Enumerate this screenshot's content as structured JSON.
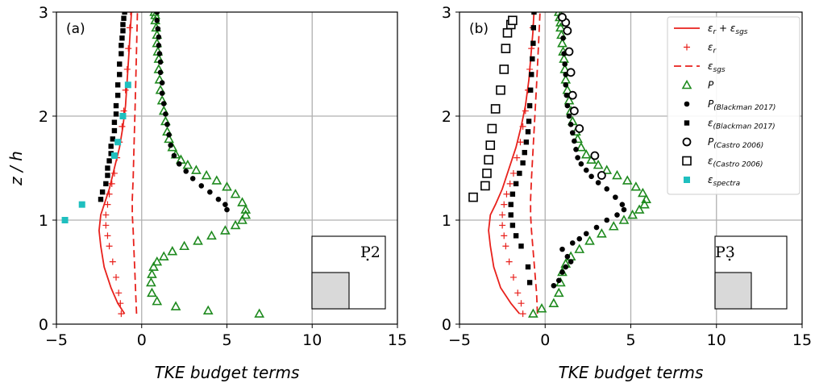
{
  "chart_data": [
    {
      "type": "line",
      "panel_label": "(a)",
      "inset_label": "P2",
      "xlabel": "TKE budget terms",
      "ylabel": "z / h",
      "xlim": [
        -5,
        15
      ],
      "ylim": [
        0,
        3
      ],
      "xticks": [
        "−5",
        "0",
        "5",
        "10",
        "15"
      ],
      "yticks": [
        "0",
        "1",
        "2",
        "3"
      ],
      "grid": true,
      "series": [
        {
          "key": "eps_total",
          "style": "solid-line",
          "color": "#e8211c",
          "x": [
            -1.0,
            -1.4,
            -1.8,
            -2.2,
            -2.4,
            -2.5,
            -2.4,
            -2.2,
            -1.9,
            -1.6,
            -1.3,
            -1.1,
            -0.95,
            -0.85,
            -0.75,
            -0.68,
            -0.6
          ],
          "y": [
            0.1,
            0.2,
            0.35,
            0.55,
            0.75,
            0.9,
            1.05,
            1.15,
            1.3,
            1.5,
            1.7,
            1.9,
            2.1,
            2.35,
            2.6,
            2.8,
            3.0
          ]
        },
        {
          "key": "eps_r",
          "style": "plus",
          "color": "#e8211c",
          "x": [
            -1.2,
            -1.25,
            -1.35,
            -1.5,
            -1.7,
            -1.9,
            -2.0,
            -2.1,
            -2.1,
            -2.0,
            -1.9,
            -1.75,
            -1.6,
            -1.45,
            -1.3,
            -1.15,
            -1.05,
            -0.95,
            -0.85,
            -0.78,
            -0.7,
            -0.65
          ],
          "y": [
            0.1,
            0.2,
            0.3,
            0.45,
            0.6,
            0.75,
            0.85,
            0.95,
            1.05,
            1.15,
            1.25,
            1.35,
            1.45,
            1.6,
            1.75,
            1.9,
            2.05,
            2.25,
            2.45,
            2.65,
            2.85,
            3.0
          ]
        },
        {
          "key": "eps_sgs",
          "style": "dashed-line",
          "color": "#e8211c",
          "x": [
            -0.3,
            -0.35,
            -0.4,
            -0.45,
            -0.5,
            -0.55,
            -0.55,
            -0.5,
            -0.45,
            -0.4,
            -0.35,
            -0.3,
            -0.25
          ],
          "y": [
            0.1,
            0.3,
            0.5,
            0.7,
            0.9,
            1.05,
            1.2,
            1.4,
            1.7,
            2.0,
            2.3,
            2.65,
            3.0
          ]
        },
        {
          "key": "P",
          "style": "triangle",
          "color": "#1e8a1e",
          "x": [
            6.9,
            3.9,
            2.0,
            0.9,
            0.6,
            0.55,
            0.6,
            0.7,
            0.9,
            1.3,
            1.8,
            2.5,
            3.3,
            4.1,
            4.9,
            5.5,
            5.9,
            6.1,
            6.1,
            5.9,
            5.5,
            5.0,
            4.4,
            3.8,
            3.2,
            2.7,
            2.3,
            2.0,
            1.8,
            1.6,
            1.5,
            1.4,
            1.3,
            1.2,
            1.1,
            1.05,
            1.0,
            1.0,
            0.95,
            0.9,
            0.9,
            0.85,
            0.8,
            0.8,
            0.75
          ],
          "y": [
            0.1,
            0.13,
            0.17,
            0.22,
            0.3,
            0.4,
            0.48,
            0.55,
            0.6,
            0.65,
            0.7,
            0.75,
            0.8,
            0.85,
            0.9,
            0.95,
            1.0,
            1.05,
            1.1,
            1.17,
            1.25,
            1.32,
            1.38,
            1.43,
            1.48,
            1.53,
            1.58,
            1.63,
            1.7,
            1.78,
            1.85,
            1.95,
            2.05,
            2.15,
            2.25,
            2.35,
            2.45,
            2.55,
            2.62,
            2.7,
            2.78,
            2.85,
            2.92,
            2.97,
            3.0
          ]
        },
        {
          "key": "P_blackman",
          "style": "dot",
          "color": "#000000",
          "x": [
            5.0,
            4.9,
            4.5,
            4.0,
            3.5,
            3.0,
            2.6,
            2.2,
            1.9,
            1.7,
            1.6,
            1.5,
            1.4,
            1.3,
            1.2,
            1.2,
            1.1,
            1.1,
            1.05,
            1.0,
            1.0,
            0.95,
            0.9,
            0.9
          ],
          "y": [
            1.1,
            1.15,
            1.2,
            1.27,
            1.33,
            1.4,
            1.47,
            1.54,
            1.62,
            1.72,
            1.82,
            1.92,
            2.02,
            2.12,
            2.22,
            2.32,
            2.42,
            2.52,
            2.6,
            2.68,
            2.76,
            2.84,
            2.92,
            3.0
          ]
        },
        {
          "key": "eps_blackman",
          "style": "square",
          "color": "#000000",
          "x": [
            -2.4,
            -2.3,
            -2.1,
            -2.0,
            -2.0,
            -1.9,
            -1.8,
            -1.8,
            -1.7,
            -1.6,
            -1.6,
            -1.5,
            -1.5,
            -1.4,
            -1.4,
            -1.3,
            -1.3,
            -1.2,
            -1.2,
            -1.15,
            -1.1,
            -1.1,
            -1.05,
            -1.0
          ],
          "y": [
            1.2,
            1.27,
            1.35,
            1.43,
            1.5,
            1.57,
            1.64,
            1.71,
            1.78,
            1.86,
            1.94,
            2.02,
            2.1,
            2.2,
            2.3,
            2.4,
            2.5,
            2.6,
            2.68,
            2.75,
            2.82,
            2.88,
            2.94,
            3.0
          ]
        },
        {
          "key": "eps_spectra",
          "style": "cyan-square",
          "color": "#1fbfbf",
          "x": [
            -4.5,
            -3.5,
            -1.6,
            -1.4,
            -1.1,
            -0.8
          ],
          "y": [
            1.0,
            1.15,
            1.62,
            1.75,
            2.0,
            2.3
          ]
        }
      ]
    },
    {
      "type": "line",
      "panel_label": "(b)",
      "inset_label": "P3",
      "xlabel": "TKE budget terms",
      "ylabel": "",
      "xlim": [
        -5,
        15
      ],
      "ylim": [
        0,
        3
      ],
      "xticks": [
        "−5",
        "0",
        "5",
        "10",
        "15"
      ],
      "yticks": [
        "0",
        "1",
        "2",
        "3"
      ],
      "grid": true,
      "series": [
        {
          "key": "eps_total",
          "style": "solid-line",
          "color": "#e8211c",
          "x": [
            -1.5,
            -2.0,
            -2.6,
            -3.0,
            -3.2,
            -3.3,
            -3.2,
            -2.9,
            -2.5,
            -2.1,
            -1.7,
            -1.4,
            -1.15,
            -0.95,
            -0.82,
            -0.72,
            -0.65
          ],
          "y": [
            0.1,
            0.2,
            0.35,
            0.55,
            0.75,
            0.9,
            1.05,
            1.15,
            1.3,
            1.5,
            1.7,
            1.9,
            2.1,
            2.35,
            2.6,
            2.8,
            3.0
          ]
        },
        {
          "key": "eps_r",
          "style": "plus",
          "color": "#e8211c",
          "x": [
            -1.3,
            -1.4,
            -1.6,
            -1.85,
            -2.1,
            -2.3,
            -2.4,
            -2.5,
            -2.5,
            -2.4,
            -2.25,
            -2.05,
            -1.85,
            -1.65,
            -1.45,
            -1.3,
            -1.15,
            -1.0,
            -0.9,
            -0.8,
            -0.72,
            -0.65
          ],
          "y": [
            0.1,
            0.2,
            0.3,
            0.45,
            0.6,
            0.75,
            0.85,
            0.95,
            1.05,
            1.15,
            1.25,
            1.35,
            1.45,
            1.6,
            1.75,
            1.9,
            2.05,
            2.25,
            2.45,
            2.65,
            2.85,
            3.0
          ]
        },
        {
          "key": "eps_sgs",
          "style": "dashed-line",
          "color": "#e8211c",
          "x": [
            -0.45,
            -0.5,
            -0.6,
            -0.7,
            -0.8,
            -0.85,
            -0.85,
            -0.8,
            -0.7,
            -0.6,
            -0.5,
            -0.4,
            -0.3
          ],
          "y": [
            0.1,
            0.3,
            0.5,
            0.7,
            0.9,
            1.05,
            1.2,
            1.4,
            1.7,
            2.0,
            2.3,
            2.65,
            3.0
          ]
        },
        {
          "key": "P",
          "style": "triangle",
          "color": "#1e8a1e",
          "x": [
            -0.7,
            -0.2,
            0.5,
            0.8,
            0.9,
            1.0,
            1.2,
            1.5,
            2.0,
            2.6,
            3.3,
            4.0,
            4.6,
            5.1,
            5.5,
            5.8,
            5.9,
            5.7,
            5.3,
            4.8,
            4.2,
            3.6,
            3.1,
            2.7,
            2.4,
            2.1,
            1.9,
            1.8,
            1.6,
            1.5,
            1.4,
            1.3,
            1.2,
            1.15,
            1.1,
            1.05,
            1.0,
            0.95,
            0.9,
            0.9,
            0.85,
            0.8
          ],
          "y": [
            0.1,
            0.15,
            0.2,
            0.3,
            0.4,
            0.5,
            0.58,
            0.65,
            0.72,
            0.8,
            0.87,
            0.94,
            1.0,
            1.05,
            1.1,
            1.15,
            1.2,
            1.26,
            1.32,
            1.38,
            1.43,
            1.48,
            1.53,
            1.58,
            1.63,
            1.7,
            1.78,
            1.85,
            1.95,
            2.05,
            2.15,
            2.25,
            2.35,
            2.45,
            2.55,
            2.62,
            2.7,
            2.78,
            2.85,
            2.9,
            2.95,
            3.0
          ]
        },
        {
          "key": "P_blackman",
          "style": "dot",
          "color": "#000000",
          "x": [
            0.5,
            0.8,
            1.0,
            1.2,
            1.5,
            1.3,
            1.0,
            1.6,
            2.0,
            2.4,
            3.0,
            3.6,
            4.2,
            4.6,
            4.5,
            4.1,
            3.6,
            3.1,
            2.7,
            2.4,
            2.1,
            1.9,
            1.8,
            1.7,
            1.6,
            1.5,
            1.4,
            1.3,
            1.25,
            1.2,
            1.2,
            1.15,
            1.1,
            1.05,
            1.0
          ],
          "y": [
            0.37,
            0.42,
            0.5,
            0.55,
            0.6,
            0.65,
            0.72,
            0.78,
            0.82,
            0.87,
            0.93,
            1.0,
            1.05,
            1.1,
            1.15,
            1.22,
            1.3,
            1.36,
            1.42,
            1.48,
            1.54,
            1.6,
            1.68,
            1.76,
            1.84,
            1.92,
            2.0,
            2.1,
            2.2,
            2.3,
            2.4,
            2.5,
            2.6,
            2.75,
            2.95
          ]
        },
        {
          "key": "eps_blackman",
          "style": "square",
          "color": "#000000",
          "x": [
            -0.9,
            -1.0,
            -1.4,
            -1.7,
            -1.9,
            -2.0,
            -2.0,
            -1.9,
            -1.7,
            -1.5,
            -1.3,
            -1.2,
            -1.1,
            -1.0,
            -0.95,
            -0.9,
            -0.85,
            -0.8,
            -0.75,
            -0.7,
            -0.68,
            -0.65
          ],
          "y": [
            0.4,
            0.55,
            0.75,
            0.85,
            0.95,
            1.05,
            1.15,
            1.25,
            1.35,
            1.45,
            1.55,
            1.65,
            1.75,
            1.85,
            1.95,
            2.1,
            2.25,
            2.4,
            2.55,
            2.7,
            2.85,
            3.0
          ]
        },
        {
          "key": "P_castro",
          "style": "open-circle",
          "color": "#000000",
          "x": [
            3.3,
            2.9,
            2.0,
            1.7,
            1.6,
            1.5,
            1.4,
            1.3,
            1.2,
            1.0
          ],
          "y": [
            1.43,
            1.62,
            1.88,
            2.05,
            2.2,
            2.42,
            2.62,
            2.82,
            2.9,
            2.95
          ]
        },
        {
          "key": "eps_castro",
          "style": "open-square",
          "color": "#000000",
          "x": [
            -4.2,
            -3.5,
            -3.4,
            -3.3,
            -3.2,
            -3.1,
            -2.9,
            -2.6,
            -2.4,
            -2.3,
            -2.2,
            -2.0,
            -1.9
          ],
          "y": [
            1.22,
            1.33,
            1.45,
            1.58,
            1.72,
            1.88,
            2.07,
            2.25,
            2.45,
            2.65,
            2.8,
            2.88,
            2.92
          ]
        }
      ]
    }
  ],
  "legend": {
    "placement": "top-right of panel (b)",
    "entries": [
      {
        "symbol": "solid-line",
        "color": "#e8211c",
        "label": "ε",
        "sub": "r",
        "label2": " + ε",
        "sub2": "sgs"
      },
      {
        "symbol": "plus",
        "color": "#e8211c",
        "label": "ε",
        "sub": "r",
        "label2": "",
        "sub2": ""
      },
      {
        "symbol": "dashed-line",
        "color": "#e8211c",
        "label": "ε",
        "sub": "sgs",
        "label2": "",
        "sub2": ""
      },
      {
        "symbol": "triangle",
        "color": "#1e8a1e",
        "label": "P",
        "sub": "",
        "label2": "",
        "sub2": ""
      },
      {
        "symbol": "dot",
        "color": "#000000",
        "label": "P",
        "sub": "(Blackman 2017)",
        "label2": "",
        "sub2": ""
      },
      {
        "symbol": "square",
        "color": "#000000",
        "label": "ε",
        "sub": "(Blackman 2017)",
        "label2": "",
        "sub2": ""
      },
      {
        "symbol": "open-circle",
        "color": "#000000",
        "label": "P",
        "sub": "(Castro 2006)",
        "label2": "",
        "sub2": ""
      },
      {
        "symbol": "open-square",
        "color": "#000000",
        "label": "ε",
        "sub": "(Castro 2006)",
        "label2": "",
        "sub2": ""
      },
      {
        "symbol": "cyan-square",
        "color": "#1fbfbf",
        "label": "ε",
        "sub": "spectra",
        "label2": "",
        "sub2": ""
      }
    ]
  }
}
